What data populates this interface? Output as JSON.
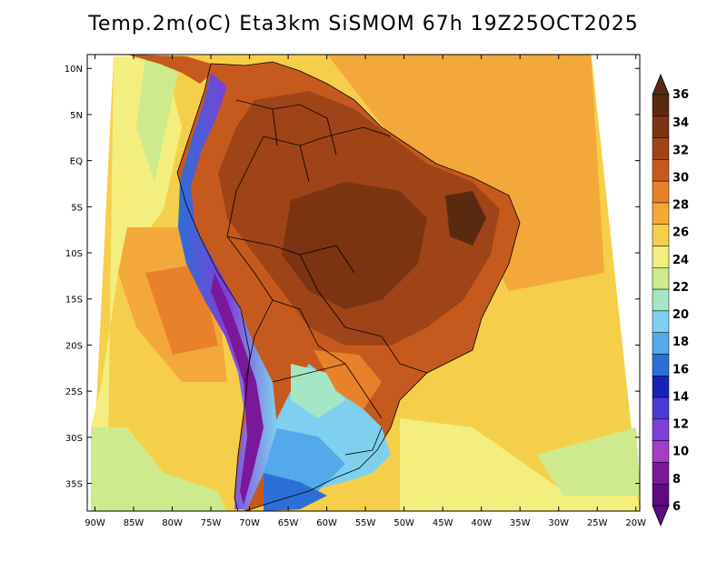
{
  "title": "Temp.2m(oC) Eta3km SiSMOM 67h 19Z25OCT2025",
  "map": {
    "variable": "2 m temperature",
    "units": "oC",
    "lat_labels": [
      "10N",
      "5N",
      "EQ",
      "5S",
      "10S",
      "15S",
      "20S",
      "25S",
      "30S",
      "35S"
    ],
    "lat_values": [
      10,
      5,
      0,
      -5,
      -10,
      -15,
      -20,
      -25,
      -30,
      -35
    ],
    "lon_labels": [
      "90W",
      "85W",
      "80W",
      "75W",
      "70W",
      "65W",
      "60W",
      "55W",
      "50W",
      "45W",
      "40W",
      "35W",
      "30W",
      "25W",
      "20W"
    ],
    "lon_values": [
      -90,
      -85,
      -80,
      -75,
      -70,
      -65,
      -60,
      -55,
      -50,
      -45,
      -40,
      -35,
      -30,
      -25,
      -20
    ],
    "lat_range": [
      -38,
      11.5
    ],
    "lon_range": [
      -91,
      -19.5
    ]
  },
  "colorbar": {
    "levels": [
      "36",
      "34",
      "32",
      "30",
      "28",
      "26",
      "24",
      "22",
      "20",
      "18",
      "16",
      "14",
      "12",
      "10",
      "8",
      "6"
    ],
    "colors": [
      "#5a2a10",
      "#7a3412",
      "#9e4418",
      "#c65a1e",
      "#e9802a",
      "#f3a83a",
      "#f6cf4a",
      "#f4ee7e",
      "#cdeb8c",
      "#a5e6c4",
      "#7fd0ef",
      "#54a9ea",
      "#2d6fd6",
      "#1523b9",
      "#4a3ad8",
      "#7e40d8",
      "#a53ec4",
      "#7a189a",
      "#5a0c80"
    ]
  }
}
